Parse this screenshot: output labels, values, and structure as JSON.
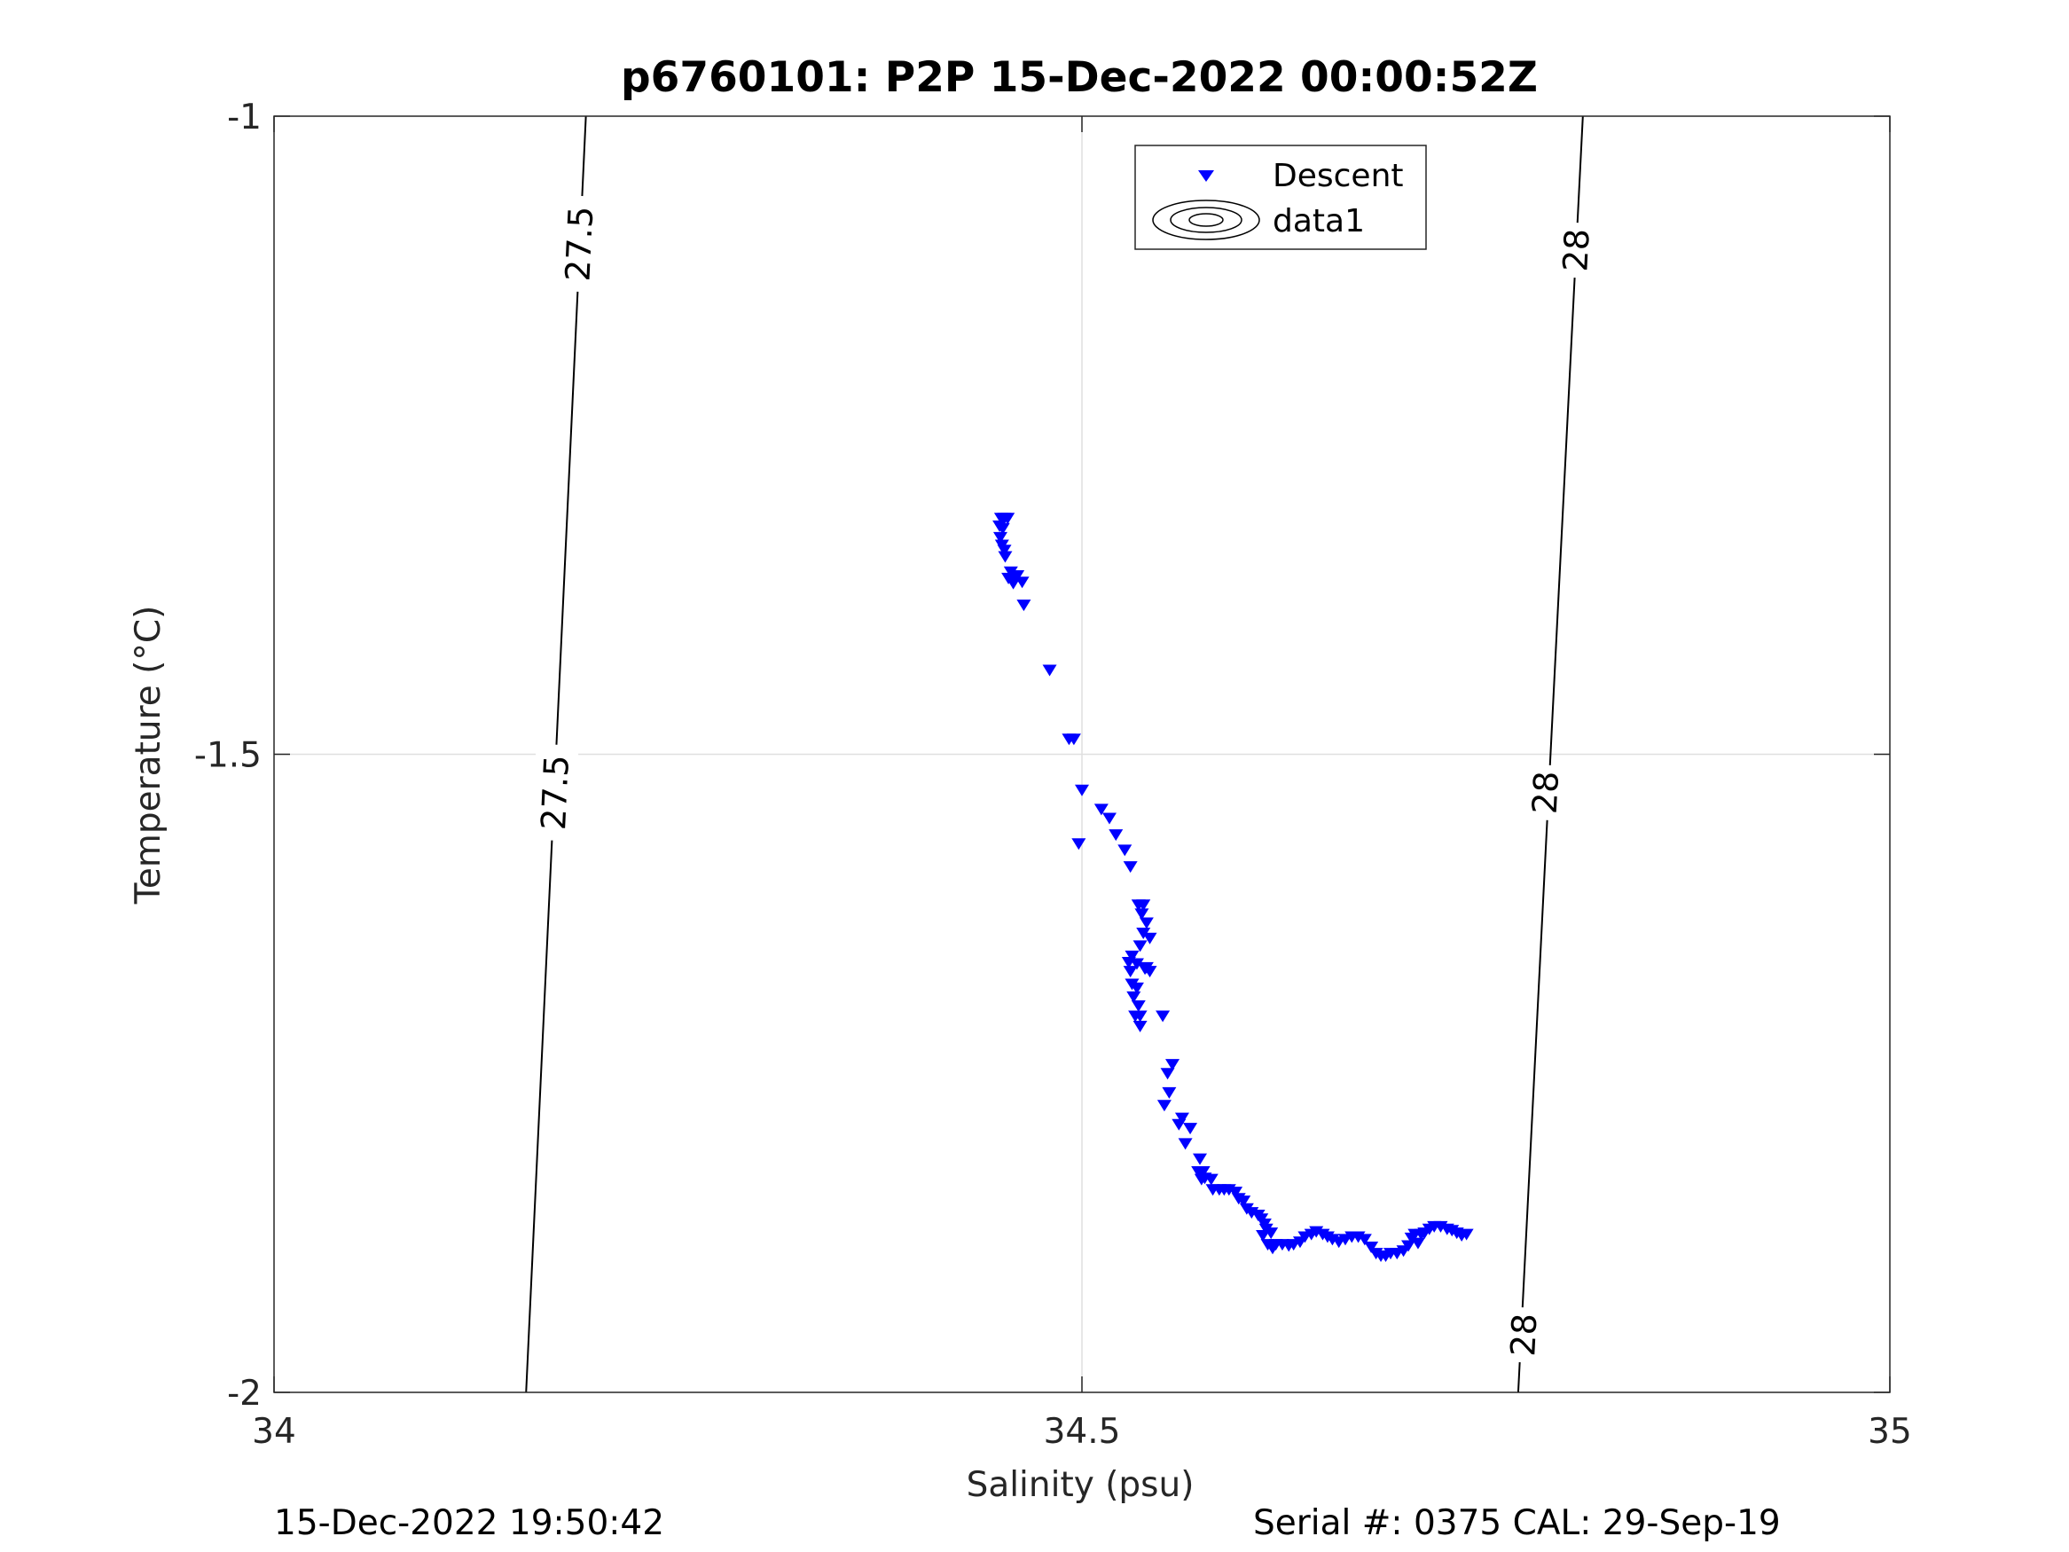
{
  "footer": {
    "timestamp": "15-Dec-2022 19:50:42",
    "serial_cal": "Serial #: 0375  CAL: 29-Sep-19"
  },
  "chart_data": {
    "type": "scatter",
    "title": "p6760101: P2P 15-Dec-2022 00:00:52Z",
    "xlabel": "Salinity (psu)",
    "ylabel": "Temperature (°C)",
    "xlim": [
      34,
      35
    ],
    "ylim": [
      -2,
      -1
    ],
    "x_ticks": [
      34,
      34.5,
      35
    ],
    "x_tick_labels": [
      "34",
      "34.5",
      "35"
    ],
    "y_ticks": [
      -2,
      -1.5,
      -1
    ],
    "y_tick_labels": [
      "-2",
      "-1.5",
      "-1"
    ],
    "grid": true,
    "legend": {
      "placement": "top-center",
      "entries": [
        "Descent",
        "data1"
      ]
    },
    "colors": {
      "descent": "#0000ff",
      "contour": "#000000",
      "grid": "#dfdfdf",
      "axis": "#262626"
    },
    "contours": [
      {
        "label": "27.5",
        "line": [
          [
            34.193,
            -1.0
          ],
          [
            34.156,
            -2.0
          ]
        ],
        "label_points": [
          [
            34.189,
            -1.1
          ],
          [
            34.174,
            -1.53
          ]
        ]
      },
      {
        "label": "28",
        "line": [
          [
            34.81,
            -1.0
          ],
          [
            34.77,
            -2.0
          ]
        ],
        "label_points": [
          [
            34.806,
            -1.105
          ],
          [
            34.787,
            -1.53
          ]
        ],
        "label_points_extra": [
          [
            34.7735,
            -1.955
          ]
        ]
      }
    ],
    "series": [
      {
        "name": "Descent",
        "marker": "triangle-down",
        "points": [
          [
            34.45,
            -1.315
          ],
          [
            34.452,
            -1.315
          ],
          [
            34.454,
            -1.315
          ],
          [
            34.449,
            -1.321
          ],
          [
            34.451,
            -1.323
          ],
          [
            34.4495,
            -1.33
          ],
          [
            34.4505,
            -1.336
          ],
          [
            34.452,
            -1.34
          ],
          [
            34.4525,
            -1.345
          ],
          [
            34.456,
            -1.357
          ],
          [
            34.458,
            -1.36
          ],
          [
            34.46,
            -1.36
          ],
          [
            34.4545,
            -1.362
          ],
          [
            34.4575,
            -1.366
          ],
          [
            34.463,
            -1.365
          ],
          [
            34.464,
            -1.383
          ],
          [
            34.48,
            -1.434
          ],
          [
            34.492,
            -1.488
          ],
          [
            34.495,
            -1.488
          ],
          [
            34.5,
            -1.528
          ],
          [
            34.512,
            -1.543
          ],
          [
            34.517,
            -1.55
          ],
          [
            34.521,
            -1.563
          ],
          [
            34.5265,
            -1.575
          ],
          [
            34.498,
            -1.57
          ],
          [
            34.53,
            -1.588
          ],
          [
            34.535,
            -1.618
          ],
          [
            34.538,
            -1.618
          ],
          [
            34.537,
            -1.625
          ],
          [
            34.54,
            -1.632
          ],
          [
            34.538,
            -1.64
          ],
          [
            34.542,
            -1.644
          ],
          [
            34.536,
            -1.65
          ],
          [
            34.531,
            -1.658
          ],
          [
            34.534,
            -1.664
          ],
          [
            34.529,
            -1.663
          ],
          [
            34.54,
            -1.667
          ],
          [
            34.53,
            -1.67
          ],
          [
            34.531,
            -1.68
          ],
          [
            34.534,
            -1.683
          ],
          [
            34.532,
            -1.69
          ],
          [
            34.535,
            -1.697
          ],
          [
            34.533,
            -1.705
          ],
          [
            34.536,
            -1.713
          ],
          [
            34.539,
            -1.668
          ],
          [
            34.542,
            -1.67
          ],
          [
            34.536,
            -1.705
          ],
          [
            34.55,
            -1.705
          ],
          [
            34.556,
            -1.743
          ],
          [
            34.553,
            -1.75
          ],
          [
            34.554,
            -1.765
          ],
          [
            34.551,
            -1.775
          ],
          [
            34.562,
            -1.785
          ],
          [
            34.56,
            -1.79
          ],
          [
            34.567,
            -1.793
          ],
          [
            34.564,
            -1.805
          ],
          [
            34.573,
            -1.817
          ],
          [
            34.572,
            -1.827
          ],
          [
            34.574,
            -1.833
          ],
          [
            34.576,
            -1.832
          ],
          [
            34.575,
            -1.827
          ],
          [
            34.58,
            -1.833
          ],
          [
            34.581,
            -1.841
          ],
          [
            34.585,
            -1.841
          ],
          [
            34.588,
            -1.841
          ],
          [
            34.591,
            -1.841
          ],
          [
            34.595,
            -1.843
          ],
          [
            34.597,
            -1.848
          ],
          [
            34.6,
            -1.85
          ],
          [
            34.602,
            -1.856
          ],
          [
            34.605,
            -1.859
          ],
          [
            34.609,
            -1.861
          ],
          [
            34.611,
            -1.864
          ],
          [
            34.613,
            -1.868
          ],
          [
            34.614,
            -1.872
          ],
          [
            34.612,
            -1.877
          ],
          [
            34.617,
            -1.875
          ],
          [
            34.615,
            -1.884
          ],
          [
            34.618,
            -1.887
          ],
          [
            34.62,
            -1.884
          ],
          [
            34.624,
            -1.884
          ],
          [
            34.628,
            -1.885
          ],
          [
            34.631,
            -1.884
          ],
          [
            34.635,
            -1.882
          ],
          [
            34.638,
            -1.878
          ],
          [
            34.642,
            -1.876
          ],
          [
            34.645,
            -1.874
          ],
          [
            34.649,
            -1.876
          ],
          [
            34.652,
            -1.878
          ],
          [
            34.655,
            -1.88
          ],
          [
            34.659,
            -1.882
          ],
          [
            34.663,
            -1.88
          ],
          [
            34.667,
            -1.878
          ],
          [
            34.671,
            -1.878
          ],
          [
            34.675,
            -1.88
          ],
          [
            34.679,
            -1.886
          ],
          [
            34.682,
            -1.891
          ],
          [
            34.685,
            -1.893
          ],
          [
            34.688,
            -1.893
          ],
          [
            34.691,
            -1.891
          ],
          [
            34.695,
            -1.891
          ],
          [
            34.699,
            -1.889
          ],
          [
            34.702,
            -1.885
          ],
          [
            34.704,
            -1.879
          ],
          [
            34.706,
            -1.876
          ],
          [
            34.708,
            -1.883
          ],
          [
            34.71,
            -1.876
          ],
          [
            34.712,
            -1.875
          ],
          [
            34.715,
            -1.872
          ],
          [
            34.718,
            -1.87
          ],
          [
            34.722,
            -1.87
          ],
          [
            34.726,
            -1.872
          ],
          [
            34.729,
            -1.873
          ],
          [
            34.732,
            -1.875
          ],
          [
            34.735,
            -1.877
          ],
          [
            34.738,
            -1.876
          ]
        ]
      }
    ]
  }
}
